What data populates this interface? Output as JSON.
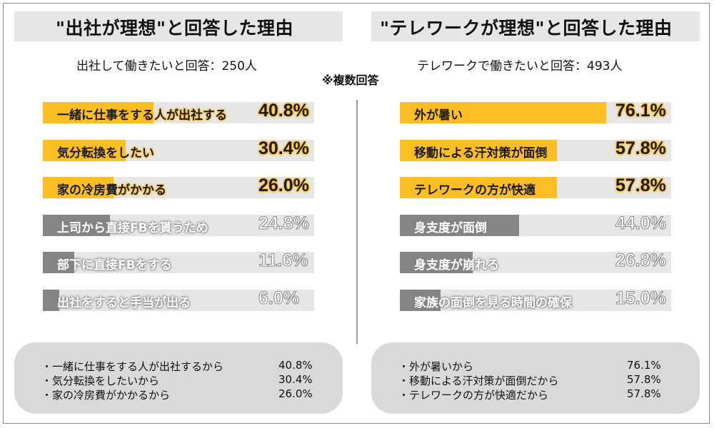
{
  "note": "※複数回答",
  "panels": [
    {
      "title": "\"出社が理想\"と回答した理由",
      "subtitle": "出社して働きたいと回答：250人",
      "summary": [
        {
          "text": "・一緒に仕事をする人が出社するから",
          "value": "40.8%"
        },
        {
          "text": "・気分転換をしたいから",
          "value": "30.4%"
        },
        {
          "text": "・家の冷房費がかかるから",
          "value": "26.0%"
        }
      ]
    },
    {
      "title": "\"テレワークが理想\"と回答した理由",
      "subtitle": "テレワークで働きたいと回答：493人",
      "summary": [
        {
          "text": "・外が暑いから",
          "value": "76.1%"
        },
        {
          "text": "・移動による汗対策が面倒だから",
          "value": "57.8%"
        },
        {
          "text": "・テレワークの方が快適だから",
          "value": "57.8%"
        }
      ]
    }
  ],
  "colors": {
    "highlight": "#fbbf24",
    "muted": "#858585",
    "track": "#e6e6e6"
  },
  "chart_data": [
    {
      "type": "bar",
      "orientation": "horizontal",
      "title": "\"出社が理想\"と回答した理由",
      "categories": [
        "一緒に仕事をする人が出社する",
        "気分転換をしたい",
        "家の冷房費がかかる",
        "上司から直接FBを貰うため",
        "部下に直接FBをする",
        "出社をすると手当が出る"
      ],
      "values": [
        40.8,
        30.4,
        26.0,
        24.8,
        11.6,
        6.0
      ],
      "labels": [
        "40.8%",
        "30.4%",
        "26.0%",
        "24.8%",
        "11.6%",
        "6.0%"
      ],
      "highlighted": [
        true,
        true,
        true,
        false,
        false,
        false
      ],
      "xlim": [
        0,
        100
      ]
    },
    {
      "type": "bar",
      "orientation": "horizontal",
      "title": "\"テレワークが理想\"と回答した理由",
      "categories": [
        "外が暑い",
        "移動による汗対策が面倒",
        "テレワークの方が快適",
        "身支度が面倒",
        "身支度が崩れる",
        "家族の面倒を見る時間の確保"
      ],
      "values": [
        76.1,
        57.8,
        57.8,
        44.0,
        26.8,
        15.0
      ],
      "labels": [
        "76.1%",
        "57.8%",
        "57.8%",
        "44.0%",
        "26.8%",
        "15.0%"
      ],
      "highlighted": [
        true,
        true,
        true,
        false,
        false,
        false
      ],
      "xlim": [
        0,
        100
      ]
    }
  ]
}
